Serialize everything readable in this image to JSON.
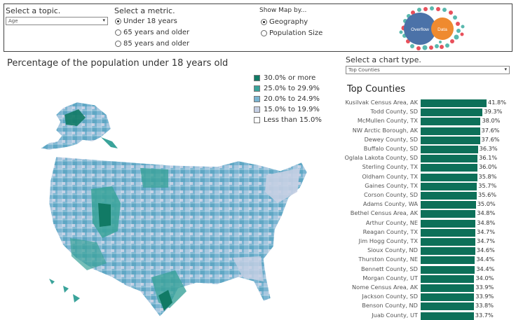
{
  "controls": {
    "topic": {
      "label": "Select a topic.",
      "value": "Age"
    },
    "metric": {
      "label": "Select a metric.",
      "options": [
        "Under 18 years",
        "65 years and older",
        "85 years and older"
      ],
      "selected": 0
    },
    "mapby": {
      "label": "Show Map by...",
      "options": [
        "Geography",
        "Population Size"
      ],
      "selected": 0
    },
    "bubble": {
      "left_label": "Overflow",
      "right_label": "Data"
    }
  },
  "map": {
    "title": "Percentage of the population under 18 years old",
    "legend": [
      {
        "label": "30.0% or more",
        "color": "#117a65"
      },
      {
        "label": "25.0% to 29.9%",
        "color": "#3aa39a"
      },
      {
        "label": "20.0% to 24.9%",
        "color": "#79b4d1"
      },
      {
        "label": "15.0% to 19.9%",
        "color": "#c5cfe3"
      },
      {
        "label": "Less than 15.0%",
        "color": "#ffffff"
      }
    ]
  },
  "chart_type": {
    "label": "Select a chart type.",
    "value": "Top Counties"
  },
  "chart_data": {
    "type": "bar",
    "title": "Top Counties",
    "bar_color": "#0d7059",
    "xlim": [
      0,
      41.8
    ],
    "categories": [
      "Kusilvak Census Area, AK",
      "Todd County, SD",
      "McMullen County, TX",
      "NW Arctic Borough, AK",
      "Dewey County, SD",
      "Buffalo County, SD",
      "Oglala Lakota County, SD",
      "Sterling County, TX",
      "Oldham County, TX",
      "Gaines County, TX",
      "Corson County, SD",
      "Adams County, WA",
      "Bethel Census Area, AK",
      "Arthur County, NE",
      "Reagan County, TX",
      "Jim Hogg County, TX",
      "Sioux County, ND",
      "Thurston County, NE",
      "Bennett County, SD",
      "Morgan County, UT",
      "Nome Census Area, AK",
      "Jackson County, SD",
      "Benson County, ND",
      "Juab County, UT"
    ],
    "values": [
      41.8,
      39.3,
      38.0,
      37.6,
      37.6,
      36.3,
      36.1,
      36.0,
      35.8,
      35.7,
      35.6,
      35.0,
      34.8,
      34.8,
      34.7,
      34.7,
      34.6,
      34.4,
      34.4,
      34.0,
      33.9,
      33.9,
      33.8,
      33.7
    ],
    "value_labels": [
      "41.8%",
      "39.3%",
      "38.0%",
      "37.6%",
      "37.6%",
      "36.3%",
      "36.1%",
      "36.0%",
      "35.8%",
      "35.7%",
      "35.6%",
      "35.0%",
      "34.8%",
      "34.8%",
      "34.7%",
      "34.7%",
      "34.6%",
      "34.4%",
      "34.4%",
      "34.0%",
      "33.9%",
      "33.9%",
      "33.8%",
      "33.7%"
    ]
  }
}
